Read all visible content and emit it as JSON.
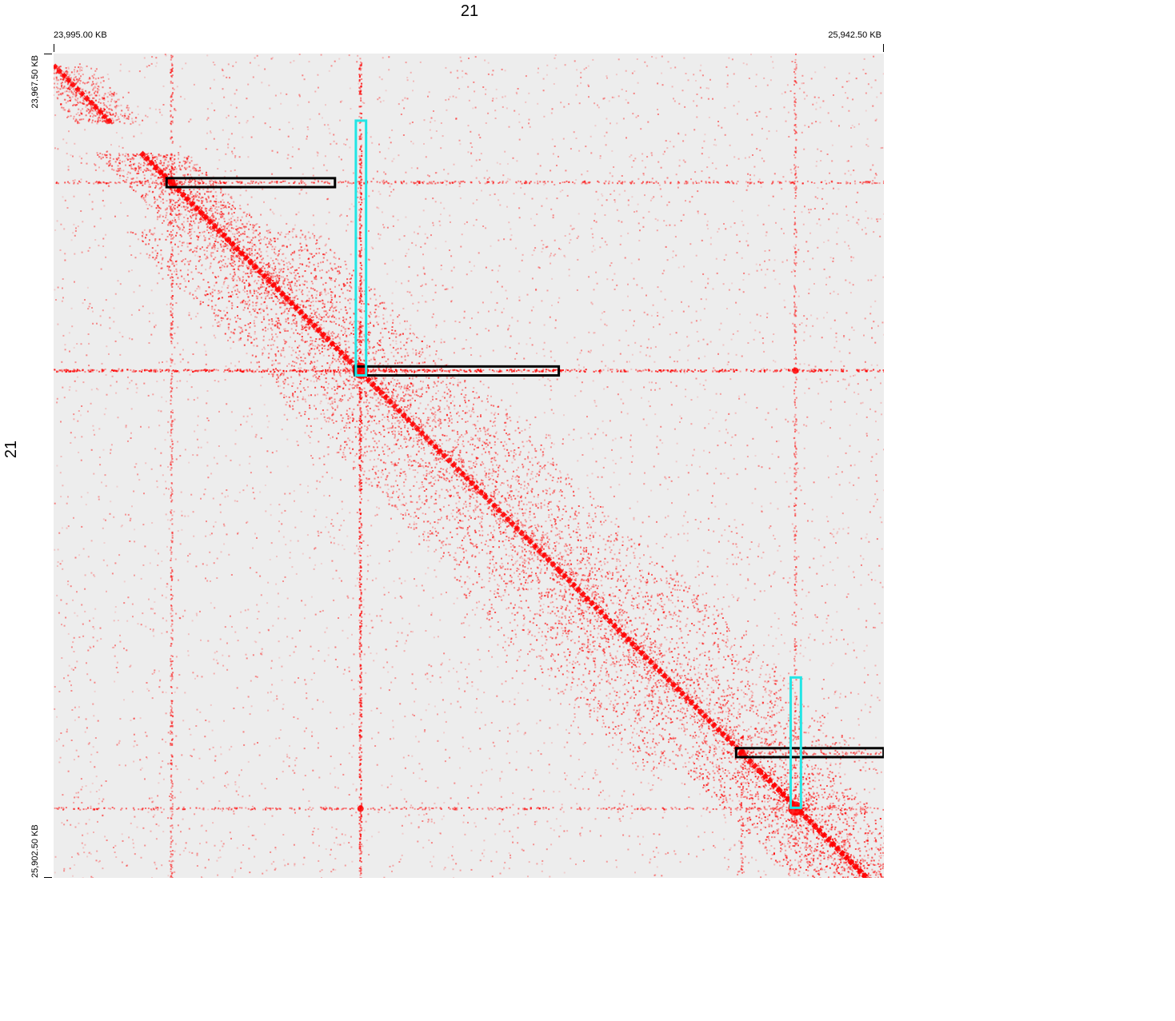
{
  "chart_data": {
    "type": "heatmap",
    "title": "",
    "x_axis": {
      "title": "21",
      "start_label": "23,995.00 KB",
      "end_label": "25,942.50 KB",
      "range_kb": [
        23995.0,
        25942.5
      ]
    },
    "y_axis": {
      "title": "21",
      "start_label": "23,967.50 KB",
      "end_label": "25,902.50 KB",
      "range_kb": [
        23967.5,
        25902.5
      ]
    },
    "colors": {
      "background": "#ededed",
      "contact": "#ff0000",
      "loop_anchor_box": "#000000",
      "stripe_box": "#22e5e5"
    },
    "diagonal_blocks": [
      {
        "x": [
          23995,
          24130
        ],
        "strength": 0.7
      },
      {
        "x": [
          24200,
          24380
        ],
        "strength": 0.85
      },
      {
        "x": [
          24380,
          24760
        ],
        "strength": 0.9
      },
      {
        "x": [
          24760,
          25180
        ],
        "strength": 0.8
      },
      {
        "x": [
          25180,
          25650
        ],
        "strength": 0.85
      },
      {
        "x": [
          25650,
          25942
        ],
        "strength": 0.95
      }
    ],
    "stripes": [
      {
        "orientation": "vertical",
        "x_kb": 24272,
        "y_kb": [
          23967,
          25902
        ],
        "strength": 0.55
      },
      {
        "orientation": "vertical",
        "x_kb": 24715,
        "y_kb": [
          23967,
          25902
        ],
        "strength": 0.9
      },
      {
        "orientation": "vertical",
        "x_kb": 25610,
        "y_kb": [
          25560,
          25902
        ],
        "strength": 0.55
      },
      {
        "orientation": "vertical",
        "x_kb": 25735,
        "y_kb": [
          23967,
          25902
        ],
        "strength": 0.45
      },
      {
        "orientation": "horizontal",
        "y_kb": 24270,
        "x_kb": [
          23995,
          25942
        ],
        "strength": 0.6
      },
      {
        "orientation": "horizontal",
        "y_kb": 24712,
        "x_kb": [
          23995,
          25942
        ],
        "strength": 0.95
      },
      {
        "orientation": "horizontal",
        "y_kb": 25610,
        "x_kb": [
          25560,
          25942
        ],
        "strength": 0.5
      },
      {
        "orientation": "horizontal",
        "y_kb": 25740,
        "x_kb": [
          23995,
          25942
        ],
        "strength": 0.55
      }
    ],
    "annotations": [
      {
        "kind": "horizontal",
        "color": "black",
        "x_kb": [
          24260,
          24655
        ],
        "y_kb": [
          24260,
          24281
        ]
      },
      {
        "kind": "horizontal",
        "color": "black",
        "x_kb": [
          24702,
          25180
        ],
        "y_kb": [
          24702,
          24723
        ]
      },
      {
        "kind": "horizontal",
        "color": "black",
        "x_kb": [
          25596,
          25942
        ],
        "y_kb": [
          25598,
          25619
        ]
      },
      {
        "kind": "vertical",
        "color": "cyan",
        "x_kb": [
          24704,
          24728
        ],
        "y_kb": [
          24125,
          24723
        ]
      },
      {
        "kind": "vertical",
        "color": "cyan",
        "x_kb": [
          25724,
          25748
        ],
        "y_kb": [
          25432,
          25738
        ]
      }
    ]
  }
}
